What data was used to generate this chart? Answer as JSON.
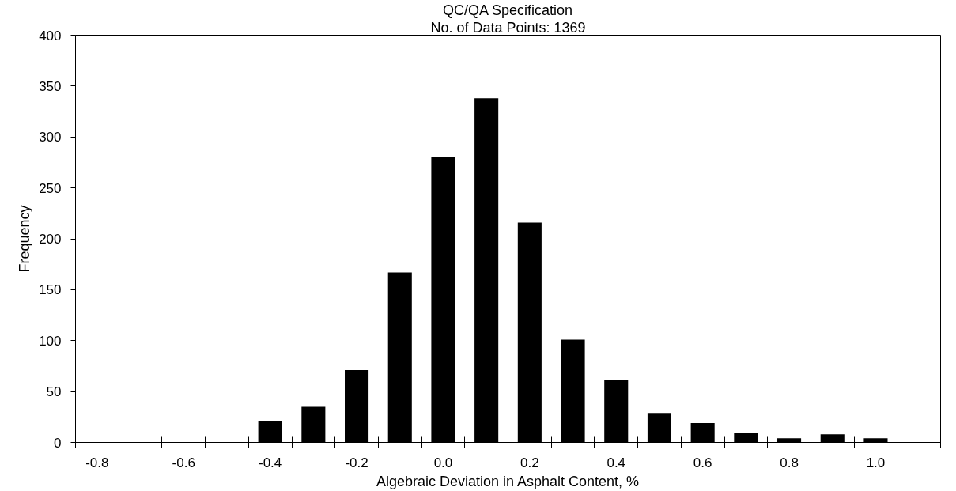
{
  "chart_data": {
    "type": "bar",
    "title": "QC/QA Specification",
    "subtitle": "No. of Data Points: 1369",
    "xlabel": "Algebraic Deviation in Asphalt Content, %",
    "ylabel": "Frequency",
    "categories": [
      "-0.8",
      null,
      "-0.6",
      null,
      "-0.4",
      null,
      "-0.2",
      null,
      "0.0",
      null,
      "0.2",
      null,
      "0.4",
      null,
      "0.6",
      null,
      "0.8",
      null,
      "1.0",
      null
    ],
    "values": [
      0,
      0,
      0,
      0,
      21,
      35,
      71,
      167,
      280,
      338,
      216,
      101,
      61,
      29,
      19,
      9,
      4,
      8,
      4,
      0
    ],
    "color": "#000000",
    "ylim": [
      0,
      400
    ],
    "yticks": [
      0,
      50,
      100,
      150,
      200,
      250,
      300,
      350,
      400
    ],
    "grid": false
  }
}
